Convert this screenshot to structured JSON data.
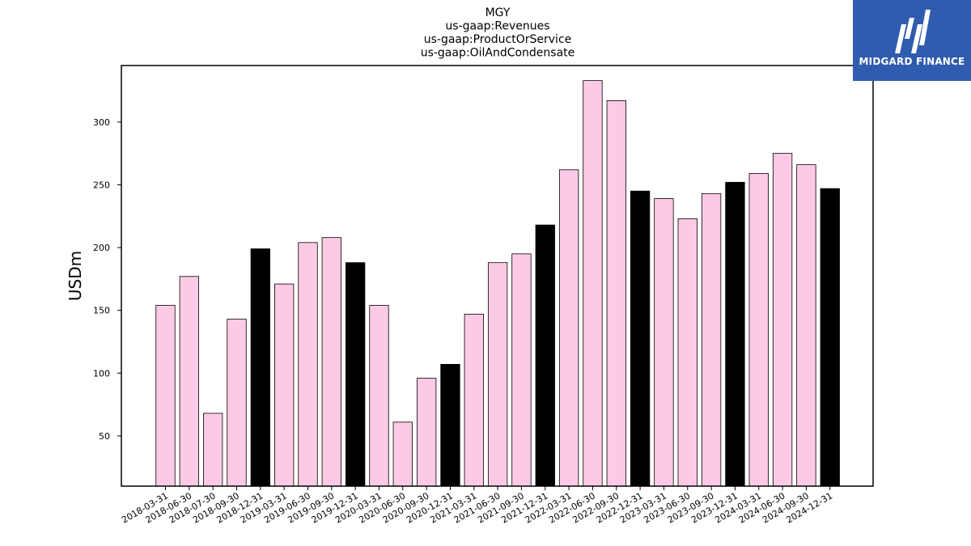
{
  "logo": {
    "text": "MIDGARD FINANCE"
  },
  "chart_data": {
    "type": "bar",
    "title_lines": [
      "MGY",
      "us-gaap:Revenues",
      "us-gaap:ProductOrService",
      "us-gaap:OilAndCondensate"
    ],
    "xlabel": "",
    "ylabel": "USDm",
    "ylim": [
      10,
      345
    ],
    "yticks": [
      50,
      100,
      150,
      200,
      250,
      300
    ],
    "grid": false,
    "colors": {
      "quarter": "#fccae4",
      "year_end": "#000000",
      "edge": "#000000"
    },
    "categories": [
      "2018-03-31",
      "2018-06-30",
      "2018-07-30",
      "2018-09-30",
      "2018-12-31",
      "2019-03-31",
      "2019-06-30",
      "2019-09-30",
      "2019-12-31",
      "2020-03-31",
      "2020-06-30",
      "2020-09-30",
      "2020-12-31",
      "2021-03-31",
      "2021-06-30",
      "2021-09-30",
      "2021-12-31",
      "2022-03-31",
      "2022-06-30",
      "2022-09-30",
      "2022-12-31",
      "2023-03-31",
      "2023-06-30",
      "2023-09-30",
      "2023-12-31",
      "2024-03-31",
      "2024-06-30",
      "2024-09-30",
      "2024-12-31"
    ],
    "values": [
      154,
      177,
      68,
      143,
      199,
      171,
      204,
      208,
      188,
      154,
      61,
      96,
      107,
      147,
      188,
      195,
      218,
      262,
      333,
      317,
      245,
      239,
      223,
      243,
      252,
      259,
      275,
      266,
      247
    ],
    "highlight": [
      false,
      false,
      false,
      false,
      true,
      false,
      false,
      false,
      true,
      false,
      false,
      false,
      true,
      false,
      false,
      false,
      true,
      false,
      false,
      false,
      true,
      false,
      false,
      false,
      true,
      false,
      false,
      false,
      true
    ]
  }
}
